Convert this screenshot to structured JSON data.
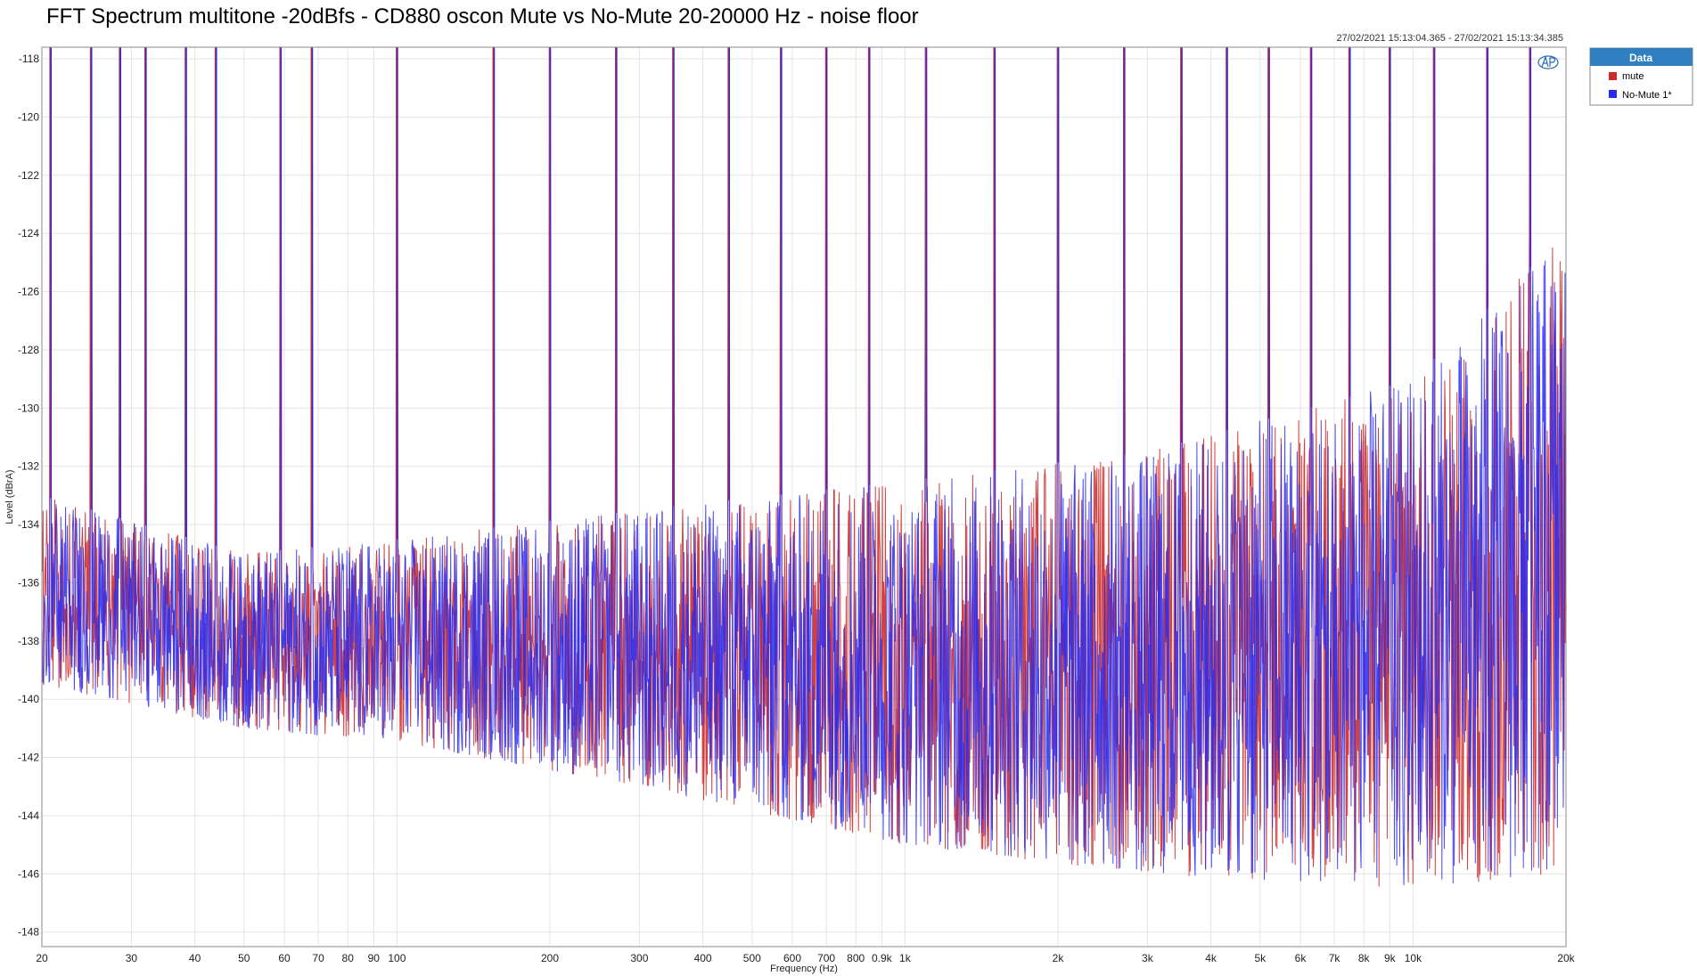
{
  "chart_data": {
    "type": "line",
    "title": "FFT Spectrum multitone -20dBfs - CD880 oscon Mute vs No-Mute 20-20000 Hz - noise floor",
    "timestamp": "27/02/2021 15:13:04.365 - 27/02/2021 15:13:34.385",
    "xlabel": "Frequency (Hz)",
    "ylabel": "Level (dBrA)",
    "x_scale": "log",
    "xlim": [
      20,
      20000
    ],
    "ylim": [
      -148.5,
      -117.6
    ],
    "grid": true,
    "x_ticks": [
      {
        "v": 20,
        "label": "20"
      },
      {
        "v": 30,
        "label": "30"
      },
      {
        "v": 40,
        "label": "40"
      },
      {
        "v": 50,
        "label": "50"
      },
      {
        "v": 60,
        "label": "60"
      },
      {
        "v": 70,
        "label": "70"
      },
      {
        "v": 80,
        "label": "80"
      },
      {
        "v": 90,
        "label": "90"
      },
      {
        "v": 100,
        "label": "100"
      },
      {
        "v": 200,
        "label": "200"
      },
      {
        "v": 300,
        "label": "300"
      },
      {
        "v": 400,
        "label": "400"
      },
      {
        "v": 500,
        "label": "500"
      },
      {
        "v": 600,
        "label": "600"
      },
      {
        "v": 700,
        "label": "700"
      },
      {
        "v": 800,
        "label": "800"
      },
      {
        "v": 900,
        "label": "0.9k"
      },
      {
        "v": 1000,
        "label": "1k"
      },
      {
        "v": 2000,
        "label": "2k"
      },
      {
        "v": 3000,
        "label": "3k"
      },
      {
        "v": 4000,
        "label": "4k"
      },
      {
        "v": 5000,
        "label": "5k"
      },
      {
        "v": 6000,
        "label": "6k"
      },
      {
        "v": 7000,
        "label": "7k"
      },
      {
        "v": 8000,
        "label": "8k"
      },
      {
        "v": 9000,
        "label": "9k"
      },
      {
        "v": 10000,
        "label": "10k"
      },
      {
        "v": 20000,
        "label": "20k"
      }
    ],
    "y_ticks": [
      {
        "v": -118,
        "label": "-118"
      },
      {
        "v": -120,
        "label": "-120"
      },
      {
        "v": -122,
        "label": "-122"
      },
      {
        "v": -124,
        "label": "-124"
      },
      {
        "v": -126,
        "label": "-126"
      },
      {
        "v": -128,
        "label": "-128"
      },
      {
        "v": -130,
        "label": "-130"
      },
      {
        "v": -132,
        "label": "-132"
      },
      {
        "v": -134,
        "label": "-134"
      },
      {
        "v": -136,
        "label": "-136"
      },
      {
        "v": -138,
        "label": "-138"
      },
      {
        "v": -140,
        "label": "-140"
      },
      {
        "v": -142,
        "label": "-142"
      },
      {
        "v": -144,
        "label": "-144"
      },
      {
        "v": -146,
        "label": "-146"
      },
      {
        "v": -148,
        "label": "-148"
      }
    ],
    "tone_frequencies_hz": [
      20.8,
      25,
      28.5,
      32,
      38.4,
      44,
      59,
      68,
      100,
      155,
      200,
      270,
      350,
      450,
      570,
      700,
      850,
      1100,
      1500,
      2000,
      2700,
      3500,
      4300,
      5200,
      6300,
      7500,
      9000,
      11000,
      14000,
      17000
    ],
    "noise_floor_envelope": [
      {
        "x": 20,
        "low": -139.5,
        "high": -133.0
      },
      {
        "x": 50,
        "low": -141.0,
        "high": -135.0
      },
      {
        "x": 100,
        "low": -141.5,
        "high": -134.5
      },
      {
        "x": 300,
        "low": -143.0,
        "high": -133.5
      },
      {
        "x": 1000,
        "low": -145.0,
        "high": -132.5
      },
      {
        "x": 3000,
        "low": -146.0,
        "high": -131.5
      },
      {
        "x": 10000,
        "low": -146.5,
        "high": -129.0
      },
      {
        "x": 20000,
        "low": -146.0,
        "high": -124.0
      }
    ],
    "legend_title": "Data",
    "legend_position": "top-right",
    "series": [
      {
        "name": "mute",
        "color": "#cc2a2a"
      },
      {
        "name": "No-Mute 1*",
        "color": "#2a2aee"
      }
    ]
  }
}
